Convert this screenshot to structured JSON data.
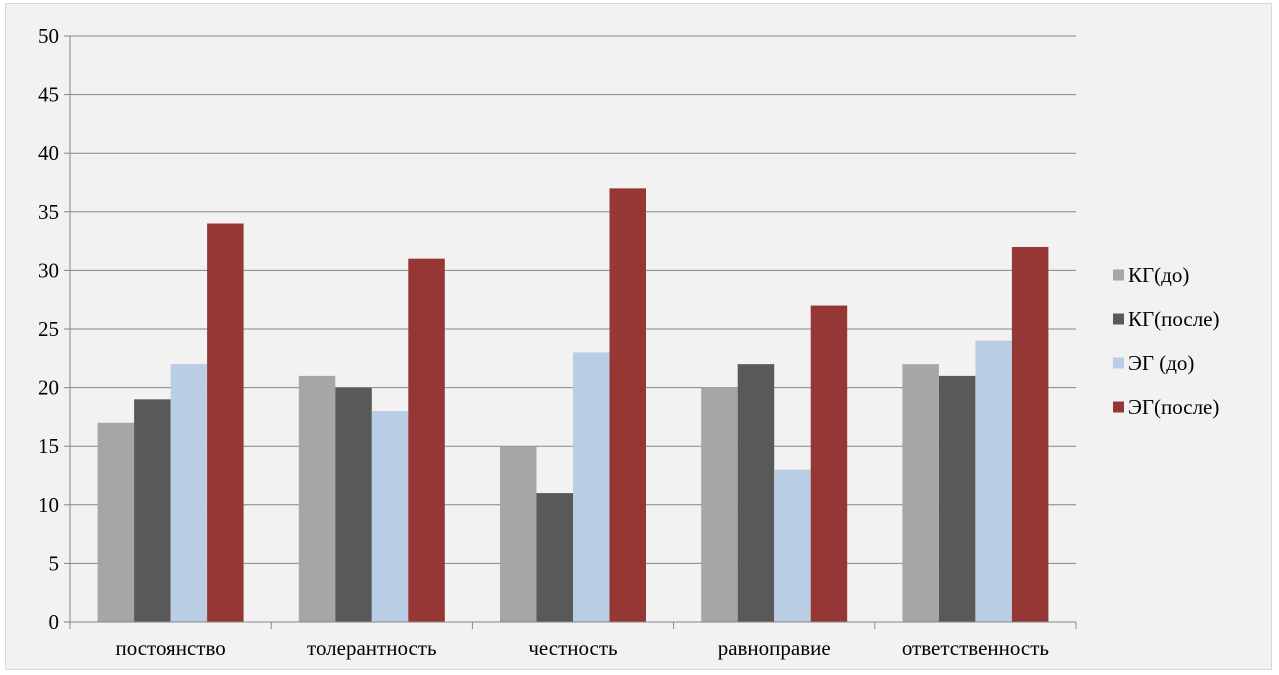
{
  "chart_data": {
    "type": "bar",
    "categories": [
      "постоянство",
      "толерантность",
      "честность",
      "равноправие",
      "ответственность"
    ],
    "series": [
      {
        "name": "КГ(до)",
        "values": [
          17,
          21,
          15,
          20,
          22
        ],
        "color": "#a6a6a6"
      },
      {
        "name": "КГ(после)",
        "values": [
          19,
          20,
          11,
          22,
          21
        ],
        "color": "#595959"
      },
      {
        "name": "ЭГ (до)",
        "values": [
          22,
          18,
          23,
          13,
          24
        ],
        "color": "#b9cde5"
      },
      {
        "name": "ЭГ(после)",
        "values": [
          34,
          31,
          37,
          27,
          32
        ],
        "color": "#953735"
      }
    ],
    "ylim": [
      0,
      50
    ],
    "yticks": [
      0,
      5,
      10,
      15,
      20,
      25,
      30,
      35,
      40,
      45,
      50
    ],
    "grid": true,
    "legend_position": "right",
    "title": "",
    "xlabel": "",
    "ylabel": ""
  },
  "colors": {
    "background": "#f2f2f2",
    "gridline": "#868686",
    "axis": "#868686"
  }
}
